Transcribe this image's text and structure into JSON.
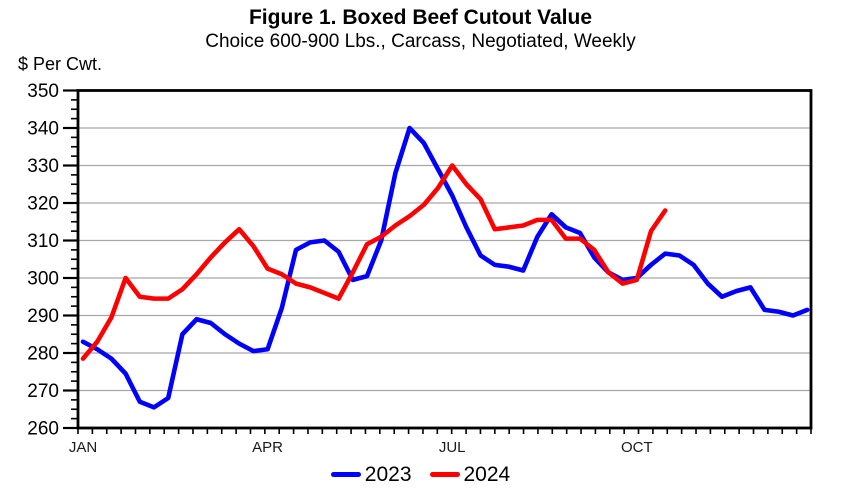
{
  "header": {
    "title": "Figure 1. Boxed Beef Cutout Value",
    "subtitle": "Choice 600-900 Lbs., Carcass, Negotiated, Weekly"
  },
  "chart_data": {
    "type": "line",
    "title": "Figure 1. Boxed Beef Cutout Value",
    "subtitle": "Choice 600-900 Lbs., Carcass, Negotiated, Weekly",
    "ylabel": "$ Per Cwt.",
    "xlabel": "",
    "ylim": [
      260,
      350
    ],
    "y_major_step": 10,
    "y_minor_step": 2.5,
    "y_tick_labels": [
      "260",
      "270",
      "280",
      "290",
      "300",
      "310",
      "320",
      "330",
      "340",
      "350"
    ],
    "grid": "horizontal-major-only",
    "gridline_color": "#a6a6a6",
    "frame_color": "#000000",
    "x_unit": "week-of-year",
    "x_weeks_total": 52,
    "month_ticks": [
      {
        "label": "JAN",
        "week": 1
      },
      {
        "label": "APR",
        "week": 14
      },
      {
        "label": "JUL",
        "week": 27
      },
      {
        "label": "OCT",
        "week": 40
      }
    ],
    "legend_position": "bottom-center",
    "series": [
      {
        "name": "2023",
        "color": "#0000ff",
        "values": [
          283,
          281,
          278.5,
          274.5,
          267,
          265.5,
          268,
          285,
          289,
          288,
          285,
          282.5,
          280.5,
          281,
          292,
          307.5,
          309.5,
          310,
          307,
          299.5,
          300.5,
          310,
          328,
          340,
          336,
          329,
          322,
          313.5,
          306,
          303.5,
          303,
          302,
          311,
          317,
          313.5,
          312,
          305.5,
          301.5,
          299.5,
          300,
          303.5,
          306.5,
          306,
          303.5,
          298.5,
          295,
          296.5,
          297.5,
          291.5,
          291,
          290,
          291.5
        ]
      },
      {
        "name": "2024",
        "color": "#ff0000",
        "values": [
          278.5,
          283,
          289.5,
          300,
          295,
          294.5,
          294.5,
          297,
          301,
          305.5,
          309.5,
          313,
          308.5,
          302.5,
          301,
          298.5,
          297.5,
          296,
          294.5,
          301.5,
          309,
          311,
          314,
          316.5,
          319.5,
          324,
          330,
          325,
          321,
          313,
          313.5,
          314,
          315.5,
          315.5,
          310.5,
          310.5,
          307.5,
          301.5,
          298.5,
          299.5,
          312.5,
          318
        ]
      }
    ]
  }
}
